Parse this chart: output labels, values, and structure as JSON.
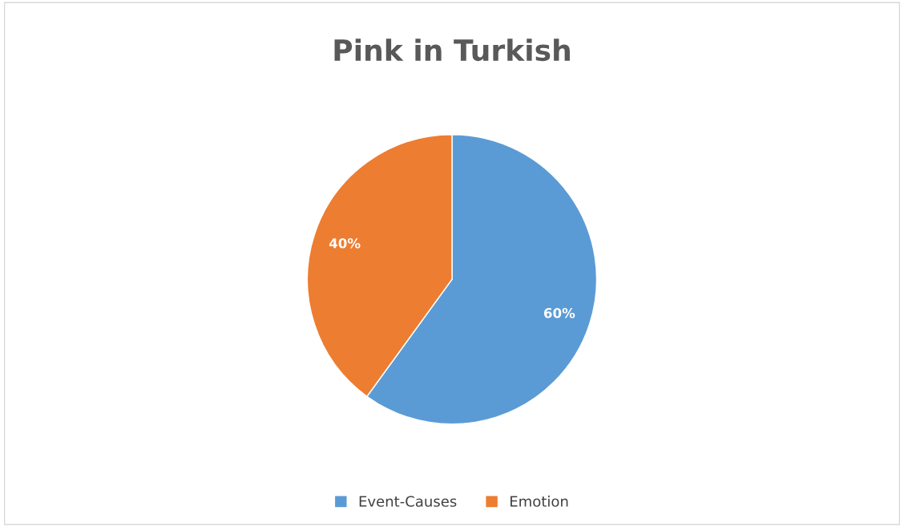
{
  "chart_data": {
    "type": "pie",
    "title": "Pink in Turkish",
    "categories": [
      "Event-Causes",
      "Emotion"
    ],
    "values": [
      60,
      40
    ],
    "colors": [
      "#5b9bd5",
      "#ed7d31"
    ],
    "value_labels": [
      "60%",
      "40%"
    ],
    "legend": "bottom"
  }
}
